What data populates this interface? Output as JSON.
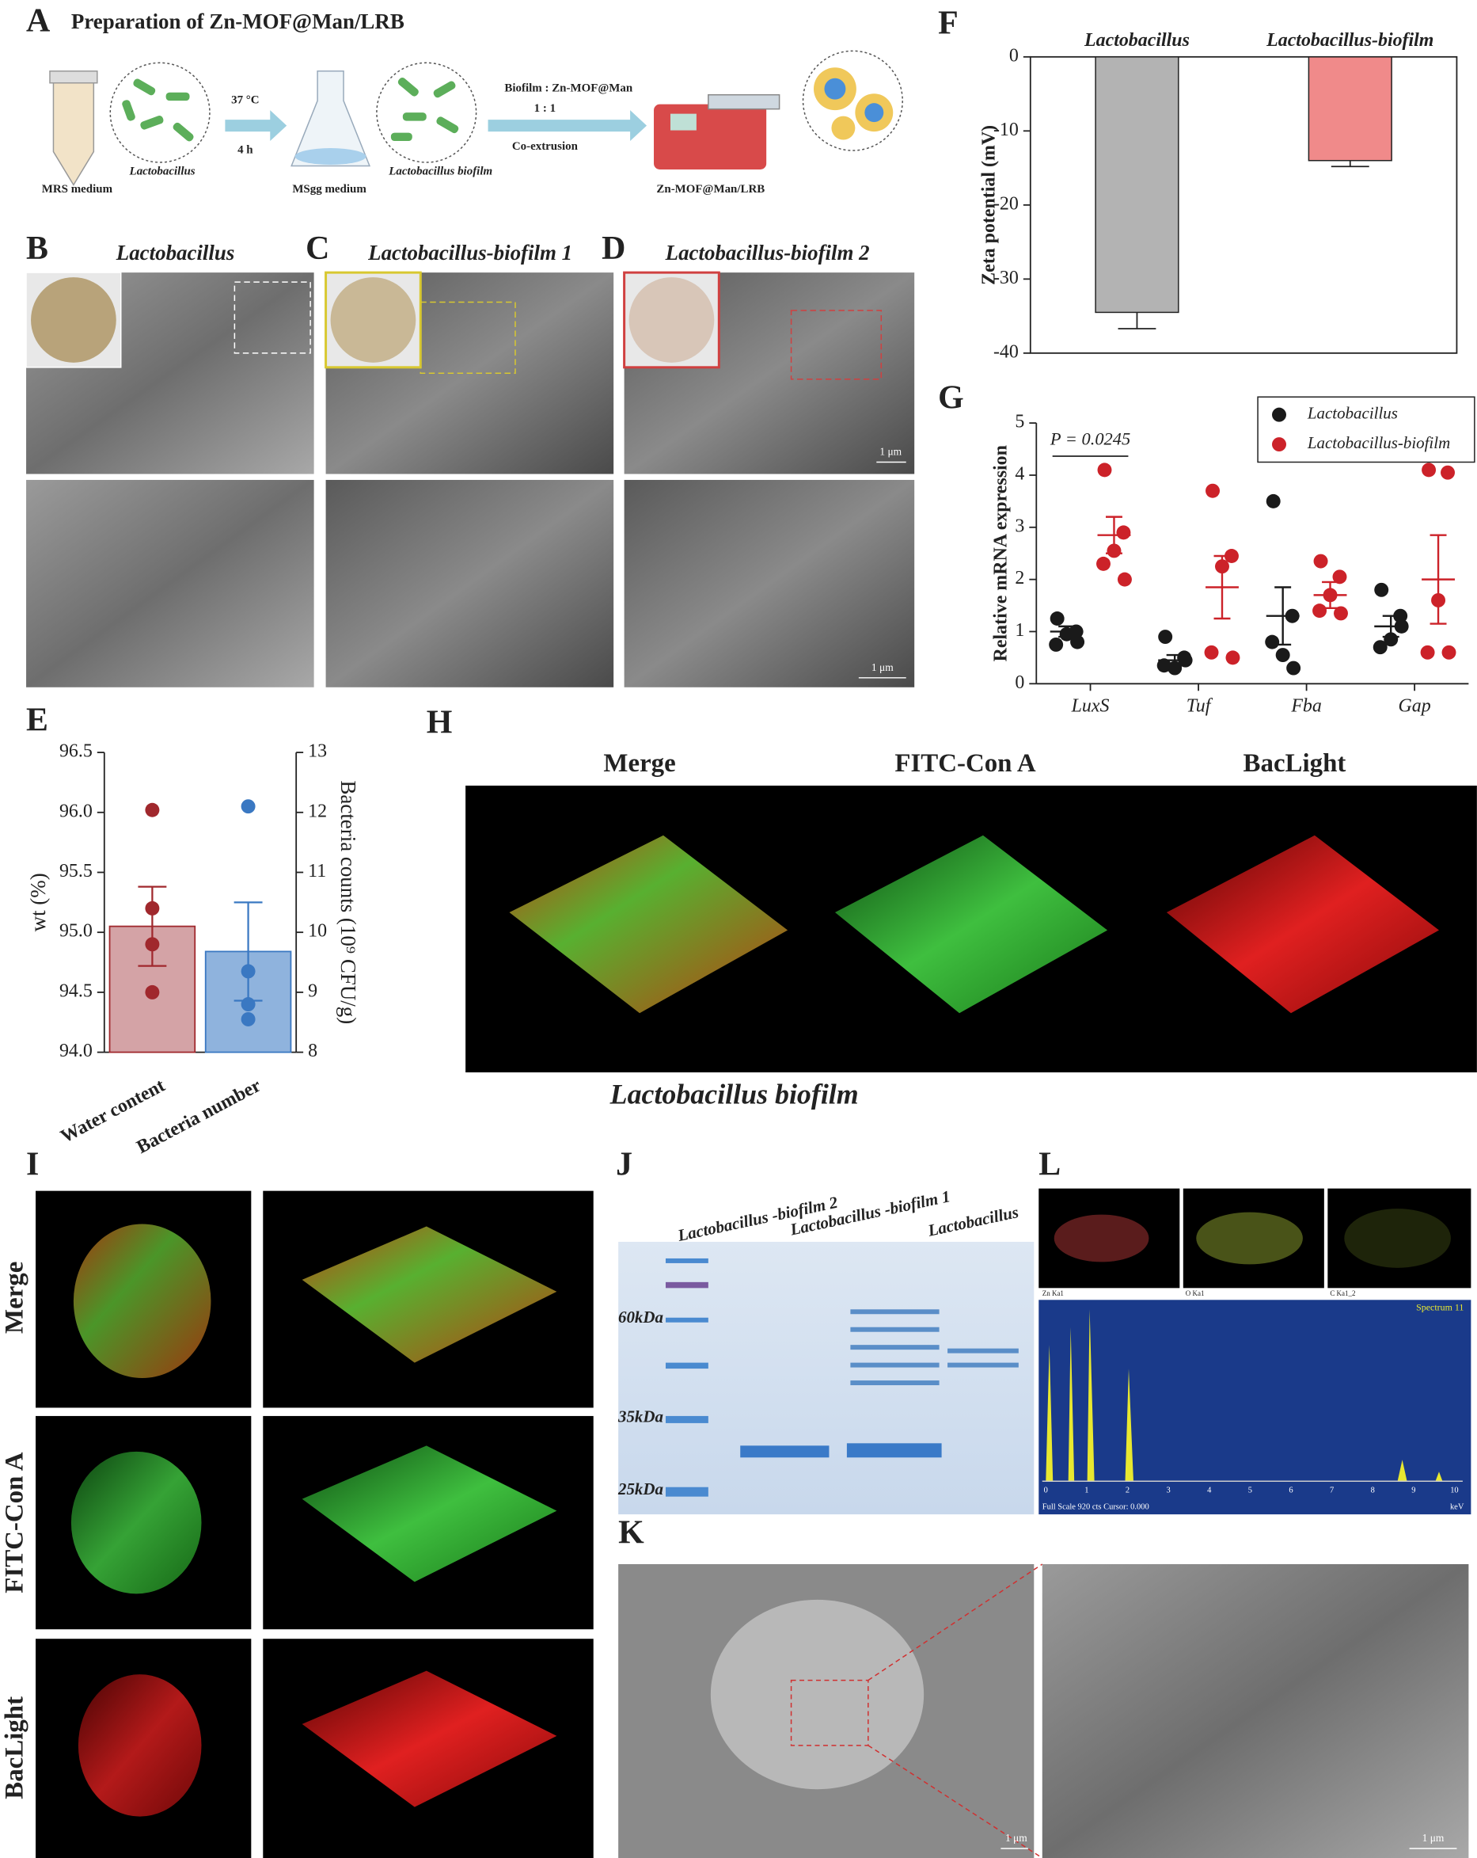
{
  "panel_letters": [
    "A",
    "B",
    "C",
    "D",
    "E",
    "F",
    "G",
    "H",
    "I",
    "J",
    "K",
    "L"
  ],
  "panel_a": {
    "title": "Preparation of Zn-MOF@Man/LRB",
    "labels": [
      "37 °C",
      "4 h",
      "MRS medium",
      "Lactobacillus",
      "MSgg medium",
      "Lactobacillus biofilm",
      "Biofilm : Zn-MOF@Man",
      "1 : 1",
      "Co-extrusion",
      "Zn-MOF@Man/LRB"
    ]
  },
  "panel_b": {
    "title": "Lactobacillus"
  },
  "panel_c": {
    "title": "Lactobacillus-biofilm 1"
  },
  "panel_d": {
    "title": "Lactobacillus-biofilm 2",
    "scale_bars": [
      "1 μm",
      "1 μm"
    ]
  },
  "panel_h": {
    "columns": [
      "Merge",
      "FITC-Con A",
      "BacLight"
    ],
    "caption": "Lactobacillus biofilm"
  },
  "panel_i": {
    "rows": [
      "Merge",
      "FITC-Con A",
      "BacLight"
    ]
  },
  "panel_j": {
    "lanes": [
      "Lactobacillus -biofilm 2",
      "Lactobacillus -biofilm 1",
      "Lactobacillus"
    ],
    "markers": [
      "60kDa",
      "35kDa",
      "25kDa"
    ]
  },
  "panel_k": {
    "scale_bars": [
      "1 μm",
      "1 μm"
    ]
  },
  "panel_l": {
    "maps": [
      "Zn Ka1",
      "O Ka1",
      "C Ka1_2"
    ],
    "spectrum": "Spectrum 11",
    "footer": "Full Scale 920 cts Cursor: 0.000",
    "unit": "keV",
    "axis": [
      0,
      1,
      2,
      3,
      4,
      5,
      6,
      7,
      8,
      9,
      10
    ]
  },
  "chart_data": [
    {
      "type": "dualbar",
      "categories": [
        "Water content",
        "Bacteria number"
      ],
      "ylabel": "wt (%)",
      "y2label": "Bacteria counts (10⁹ CFU/g)",
      "ylim": [
        94,
        96.5
      ],
      "yticks": [
        {
          "value": 94,
          "label": "94.0"
        },
        94.5,
        {
          "value": 95,
          "label": "95.0"
        },
        95.5,
        {
          "value": 96,
          "label": "96.0"
        },
        96.5
      ],
      "y2lim": [
        8,
        13
      ],
      "y2ticks": [
        8,
        9,
        10,
        11,
        12,
        13
      ],
      "series": [
        {
          "color": "#d4a3a6",
          "edge": "#a0282d",
          "values": [
            95.05,
            null
          ],
          "errors": [
            0.33,
            null
          ],
          "points": [
            [
              96.02,
              95.2,
              94.9,
              94.5
            ],
            null
          ]
        },
        {
          "axis": "y2",
          "color": "#8fb3dd",
          "edge": "#3a78c2",
          "values": [
            null,
            9.68
          ],
          "errors": [
            null,
            0.82
          ],
          "points": [
            null,
            [
              12.1,
              9.35,
              8.8,
              8.55
            ]
          ]
        }
      ]
    },
    {
      "type": "bar",
      "categories": [
        "Lactobacillus",
        "Lactobacillus-biofilm"
      ],
      "values": [
        -34.5,
        -14
      ],
      "errors": [
        2.2,
        0.8
      ],
      "colors": [
        "#b3b3b3",
        "#f08a8a"
      ],
      "ylabel": "Zeta potential (mV)",
      "ylim": [
        -40,
        0
      ],
      "yticks": [
        0,
        -10,
        -20,
        -30,
        -40
      ]
    },
    {
      "type": "scatter",
      "categories": [
        "LuxS",
        "Tuf",
        "Fba",
        "Gap"
      ],
      "ylabel": "Relative mRNA expression",
      "ylim": [
        0,
        5
      ],
      "yticks": [
        0,
        1,
        2,
        3,
        4,
        5
      ],
      "annotation": "P = 0.0245",
      "legend": "upper right",
      "series": [
        {
          "name": "Lactobacillus",
          "color": "#1a1a1a",
          "values": [
            [
              1.25,
              1.0,
              0.95,
              0.75,
              0.8
            ],
            [
              0.9,
              0.5,
              0.3,
              0.35,
              0.45
            ],
            [
              3.5,
              1.3,
              0.55,
              0.8,
              0.3
            ],
            [
              1.8,
              1.3,
              0.85,
              0.7,
              1.1
            ]
          ],
          "mean": [
            1.0,
            0.45,
            1.3,
            1.1
          ],
          "sem": [
            0.1,
            0.1,
            0.55,
            0.2
          ]
        },
        {
          "name": "Lactobacillus-biofilm",
          "color": "#cc2229",
          "values": [
            [
              4.1,
              2.9,
              2.55,
              2.3,
              2.0
            ],
            [
              3.7,
              2.45,
              2.25,
              0.6,
              0.5
            ],
            [
              2.35,
              2.05,
              1.7,
              1.4,
              1.35
            ],
            [
              4.1,
              4.05,
              1.6,
              0.6,
              0.6
            ]
          ],
          "mean": [
            2.85,
            1.85,
            1.7,
            2.0
          ],
          "sem": [
            0.35,
            0.6,
            0.25,
            0.85
          ]
        }
      ]
    }
  ]
}
